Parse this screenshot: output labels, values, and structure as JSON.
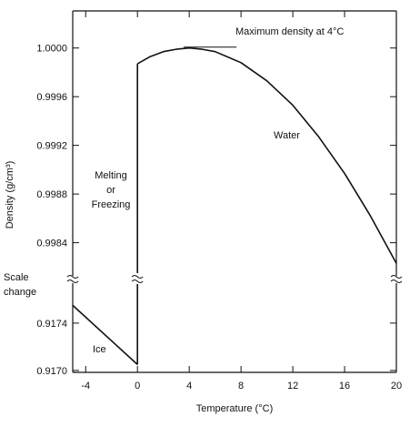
{
  "chart_data": {
    "type": "line",
    "xlabel": "Temperature (°C)",
    "ylabel": "Density (g/cm³)",
    "x_ticks": [
      "-4",
      "0",
      "4",
      "8",
      "12",
      "16",
      "20"
    ],
    "xlim": [
      -5,
      20
    ],
    "upper_panel": {
      "ylim": [
        0.99815,
        1.0002
      ],
      "y_ticks": [
        "1.0000",
        "0.9996",
        "0.9992",
        "0.9988",
        "0.9984"
      ],
      "series": [
        {
          "name": "Water",
          "x": [
            0,
            1,
            2,
            3,
            4,
            5,
            6,
            8,
            10,
            12,
            14,
            16,
            18,
            20
          ],
          "y": [
            0.99987,
            0.99993,
            0.99997,
            0.99999,
            1.0,
            0.99999,
            0.99997,
            0.99988,
            0.99973,
            0.99953,
            0.99927,
            0.99897,
            0.99862,
            0.99823
          ]
        }
      ]
    },
    "lower_panel": {
      "ylim": [
        0.91693,
        0.91773
      ],
      "y_ticks": [
        "0.9174",
        "0.9170"
      ],
      "series": [
        {
          "name": "Ice",
          "x": [
            -5,
            0
          ],
          "y": [
            0.91755,
            0.91705
          ]
        }
      ]
    },
    "annotations": {
      "max_density": "Maximum density at 4°C",
      "water": "Water",
      "ice": "Ice",
      "melting": [
        "Melting",
        "or",
        "Freezing"
      ],
      "scale_change": [
        "Scale",
        "change"
      ]
    }
  }
}
